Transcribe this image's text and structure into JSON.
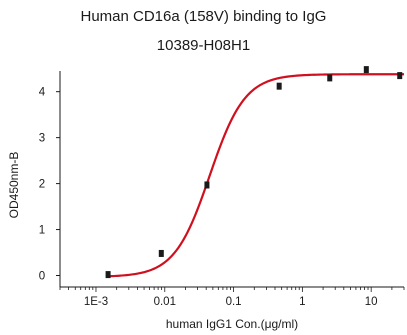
{
  "chart_data": {
    "type": "scatter",
    "title": "Human CD16a (158V) binding to IgG",
    "subtitle": "10389-H08H1",
    "xlabel": "human IgG1 Con.(μg/ml)",
    "ylabel": "OD450nm-B",
    "x_scale": "log",
    "xlim": [
      0.0003,
      30
    ],
    "ylim": [
      -0.25,
      4.45
    ],
    "x_tick_labels": [
      "1E-3",
      "0.01",
      "0.1",
      "1",
      "10"
    ],
    "x_ticks": [
      0.001,
      0.01,
      0.1,
      1,
      10
    ],
    "y_ticks": [
      0,
      1,
      2,
      3,
      4
    ],
    "grid": false,
    "legend": "none",
    "series": [
      {
        "x": [
          0.0015,
          0.0089,
          0.041,
          0.46,
          2.5,
          8.5,
          26
        ],
        "y": [
          0.02,
          0.48,
          1.97,
          4.12,
          4.3,
          4.48,
          4.35
        ]
      }
    ],
    "fit_curve": {
      "model": "4PL",
      "bottom": -0.03,
      "top": 4.38,
      "ec50": 0.045,
      "hill": 1.7
    },
    "colors": {
      "curve": "#d0101f",
      "points": "#1a1a1a",
      "axis": "#1a1a1a"
    }
  }
}
